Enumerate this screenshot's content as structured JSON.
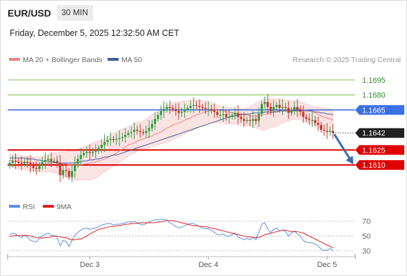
{
  "header": {
    "symbol": "EUR/USD",
    "timeframe": "30 MIN",
    "datetime": "Friday, December 5, 2025 12:32:50 AM CET"
  },
  "legend": {
    "ma20": "MA 20 + Bollinger Bands",
    "ma50": "MA 50",
    "credit": "Research © 2025 Trading Central"
  },
  "rsi_legend": {
    "rsi": "RSI",
    "ma9": "9MA"
  },
  "colors": {
    "up_candle": "#2e9e44",
    "down_candle": "#c0392b",
    "resistance": "#7cc243",
    "pivot": "#3a6fe6",
    "support": "#e00000",
    "bollinger": "#fbdada",
    "ma20": "#f08080",
    "ma50": "#3a5aa0",
    "rsi": "#5b8ee8",
    "rsi_ma": "#dd1c1c",
    "arrow": "#3a6ab0",
    "current": "#222222"
  },
  "chart_data": [
    {
      "type": "candlestick",
      "title": "",
      "x_labels": [
        "Dec 3",
        "Dec 4",
        "Dec 5"
      ],
      "ylim": [
        1.1588,
        1.1708
      ],
      "levels": [
        {
          "value": 1.1695,
          "label": "1.1695",
          "kind": "resistance"
        },
        {
          "value": 1.168,
          "label": "1.1680",
          "kind": "resistance"
        },
        {
          "value": 1.1665,
          "label": "1.1665",
          "kind": "pivot"
        },
        {
          "value": 1.1642,
          "label": "1.1642",
          "kind": "current"
        },
        {
          "value": 1.1625,
          "label": "1.1625",
          "kind": "support"
        },
        {
          "value": 1.161,
          "label": "1.1610",
          "kind": "support"
        }
      ],
      "closes": [
        1.1612,
        1.1614,
        1.1613,
        1.1612,
        1.1611,
        1.1613,
        1.1612,
        1.1609,
        1.1607,
        1.1606,
        1.161,
        1.1613,
        1.1615,
        1.1616,
        1.1614,
        1.1614,
        1.1612,
        1.16,
        1.1605,
        1.1604,
        1.1598,
        1.1604,
        1.1611,
        1.1616,
        1.162,
        1.1622,
        1.1623,
        1.1622,
        1.1623,
        1.1624,
        1.1627,
        1.163,
        1.1633,
        1.1635,
        1.1636,
        1.1635,
        1.1636,
        1.1637,
        1.1638,
        1.164,
        1.1642,
        1.1643,
        1.1645,
        1.1644,
        1.1643,
        1.1642,
        1.1644,
        1.1647,
        1.1651,
        1.1656,
        1.166,
        1.1664,
        1.1666,
        1.1668,
        1.1667,
        1.1666,
        1.1664,
        1.1662,
        1.1663,
        1.1665,
        1.1667,
        1.1669,
        1.167,
        1.1669,
        1.1668,
        1.1667,
        1.1666,
        1.1666,
        1.1665,
        1.1663,
        1.166,
        1.166,
        1.1661,
        1.1658,
        1.1658,
        1.166,
        1.1662,
        1.1658,
        1.1656,
        1.1654,
        1.1655,
        1.1654,
        1.1656,
        1.1654,
        1.1661,
        1.1671,
        1.1673,
        1.1668,
        1.1664,
        1.1668,
        1.167,
        1.1667,
        1.1668,
        1.1667,
        1.1662,
        1.1665,
        1.1668,
        1.1665,
        1.1663,
        1.1658,
        1.1656,
        1.1655,
        1.1655,
        1.1652,
        1.165,
        1.1645,
        1.1644,
        1.1643,
        1.1644,
        1.1642
      ],
      "ma20": [
        1.1615,
        1.1614,
        1.1614,
        1.1613,
        1.1613,
        1.1613,
        1.1613,
        1.1612,
        1.1612,
        1.1611,
        1.1611,
        1.1611,
        1.1611,
        1.1612,
        1.1612,
        1.1612,
        1.1612,
        1.1612,
        1.1611,
        1.1611,
        1.161,
        1.161,
        1.161,
        1.161,
        1.161,
        1.1611,
        1.1611,
        1.1612,
        1.1612,
        1.1613,
        1.1614,
        1.1615,
        1.1616,
        1.1617,
        1.1619,
        1.162,
        1.1622,
        1.1624,
        1.1626,
        1.1628,
        1.163,
        1.1631,
        1.1632,
        1.1634,
        1.1635,
        1.1636,
        1.1637,
        1.1638,
        1.1639,
        1.1641,
        1.1642,
        1.1643,
        1.1645,
        1.1647,
        1.1648,
        1.165,
        1.1651,
        1.1652,
        1.1653,
        1.1655,
        1.1656,
        1.1657,
        1.1659,
        1.166,
        1.1661,
        1.1662,
        1.1663,
        1.1664,
        1.1664,
        1.1665,
        1.1665,
        1.1664,
        1.1664,
        1.1663,
        1.1663,
        1.1662,
        1.1662,
        1.1661,
        1.1661,
        1.166,
        1.166,
        1.1659,
        1.1659,
        1.1659,
        1.1659,
        1.166,
        1.1661,
        1.1661,
        1.1662,
        1.1663,
        1.1664,
        1.1664,
        1.1664,
        1.1665,
        1.1665,
        1.1665,
        1.1666,
        1.1666,
        1.1666,
        1.1665,
        1.1665,
        1.1664,
        1.1663,
        1.1662,
        1.1661,
        1.1659,
        1.1658,
        1.1657,
        1.1656,
        1.1655
      ],
      "band_upper": [
        1.1621,
        1.162,
        1.162,
        1.162,
        1.1619,
        1.1619,
        1.1619,
        1.1618,
        1.1618,
        1.1618,
        1.1618,
        1.1618,
        1.1619,
        1.162,
        1.1621,
        1.1622,
        1.1622,
        1.1623,
        1.1623,
        1.1623,
        1.1624,
        1.1624,
        1.1625,
        1.1626,
        1.1627,
        1.1628,
        1.1629,
        1.163,
        1.1632,
        1.1633,
        1.1634,
        1.1635,
        1.1637,
        1.1638,
        1.164,
        1.1642,
        1.1643,
        1.1644,
        1.1646,
        1.1647,
        1.1648,
        1.165,
        1.1651,
        1.1652,
        1.1653,
        1.1654,
        1.1656,
        1.1658,
        1.166,
        1.1662,
        1.1664,
        1.1666,
        1.1668,
        1.167,
        1.1671,
        1.1672,
        1.1673,
        1.1673,
        1.1674,
        1.1674,
        1.1674,
        1.1675,
        1.1675,
        1.1675,
        1.1675,
        1.1674,
        1.1674,
        1.1673,
        1.1672,
        1.1671,
        1.167,
        1.1669,
        1.1669,
        1.1668,
        1.1667,
        1.1667,
        1.1666,
        1.1666,
        1.1666,
        1.1666,
        1.1667,
        1.1668,
        1.167,
        1.1672,
        1.1673,
        1.1675,
        1.1676,
        1.1676,
        1.1676,
        1.1676,
        1.1676,
        1.1676,
        1.1675,
        1.1675,
        1.1675,
        1.1674,
        1.1674,
        1.1674,
        1.1673,
        1.1672,
        1.1671,
        1.167,
        1.1669,
        1.1668,
        1.1668,
        1.1667,
        1.1667,
        1.1666,
        1.1666,
        1.1665
      ],
      "band_lower": [
        1.1609,
        1.1608,
        1.1607,
        1.1606,
        1.1606,
        1.1605,
        1.1605,
        1.1604,
        1.1604,
        1.1604,
        1.1603,
        1.1603,
        1.1603,
        1.1603,
        1.1603,
        1.1602,
        1.1601,
        1.16,
        1.1599,
        1.1598,
        1.1597,
        1.1596,
        1.1595,
        1.1595,
        1.1595,
        1.1595,
        1.1595,
        1.1595,
        1.1596,
        1.1597,
        1.1599,
        1.1601,
        1.1603,
        1.1605,
        1.1607,
        1.1609,
        1.1611,
        1.1613,
        1.1615,
        1.1617,
        1.1619,
        1.1621,
        1.1622,
        1.1624,
        1.1625,
        1.1626,
        1.1626,
        1.1627,
        1.1628,
        1.1629,
        1.163,
        1.1631,
        1.1632,
        1.1633,
        1.1634,
        1.1636,
        1.1637,
        1.1638,
        1.164,
        1.1641,
        1.1643,
        1.1644,
        1.1645,
        1.1647,
        1.1648,
        1.1649,
        1.165,
        1.1651,
        1.1652,
        1.1652,
        1.1652,
        1.1652,
        1.1652,
        1.1651,
        1.1651,
        1.1651,
        1.1651,
        1.165,
        1.165,
        1.165,
        1.1649,
        1.1649,
        1.1648,
        1.1647,
        1.1646,
        1.1645,
        1.1645,
        1.1646,
        1.1647,
        1.1648,
        1.1649,
        1.1651,
        1.1652,
        1.1653,
        1.1654,
        1.1655,
        1.1656,
        1.1656,
        1.1655,
        1.1654,
        1.1653,
        1.1652,
        1.1651,
        1.165,
        1.1648,
        1.1646,
        1.1645,
        1.1644,
        1.1644,
        1.1643
      ],
      "ma50": [
        1.1617,
        1.1617,
        1.1617,
        1.1617,
        1.1617,
        1.1617,
        1.1616,
        1.1616,
        1.1616,
        1.1615,
        1.1615,
        1.1614,
        1.1614,
        1.1614,
        1.1613,
        1.1613,
        1.1612,
        1.1612,
        1.1612,
        1.1612,
        1.1612,
        1.1612,
        1.1612,
        1.1613,
        1.1613,
        1.1614,
        1.1614,
        1.1615,
        1.1615,
        1.1616,
        1.1616,
        1.1617,
        1.1618,
        1.1618,
        1.1619,
        1.162,
        1.162,
        1.1621,
        1.1622,
        1.1623,
        1.1624,
        1.1625,
        1.1626,
        1.1627,
        1.1628,
        1.1629,
        1.163,
        1.1631,
        1.1632,
        1.1633,
        1.1634,
        1.1635,
        1.1636,
        1.1637,
        1.1638,
        1.1639,
        1.164,
        1.1641,
        1.1642,
        1.1643,
        1.1644,
        1.1645,
        1.1646,
        1.1647,
        1.1648,
        1.1649,
        1.165,
        1.1651,
        1.1652,
        1.1653,
        1.1654,
        1.1655,
        1.1656,
        1.1657,
        1.1658,
        1.1659,
        1.1659,
        1.166,
        1.166,
        1.1661,
        1.1661,
        1.1661,
        1.1662,
        1.1662,
        1.1662,
        1.1662,
        1.1663,
        1.1663,
        1.1663,
        1.1663,
        1.1663,
        1.1664,
        1.1664,
        1.1664,
        1.1664,
        1.1664,
        1.1664,
        1.1664,
        1.1664,
        1.1664,
        1.1664,
        1.1664,
        1.1664,
        1.1663,
        1.1663,
        1.1662,
        1.1662,
        1.1661,
        1.1661,
        1.166
      ],
      "forecast": {
        "from": 1.1642,
        "to": 1.161
      }
    },
    {
      "type": "line",
      "title": "",
      "ylim": [
        25,
        80
      ],
      "y_ticks": [
        70,
        50,
        30
      ],
      "series": [
        {
          "name": "RSI",
          "values": [
            52,
            54,
            53,
            50,
            48,
            51,
            49,
            44,
            43,
            42,
            47,
            50,
            53,
            54,
            51,
            51,
            48,
            37,
            44,
            43,
            36,
            44,
            51,
            55,
            58,
            60,
            61,
            59,
            60,
            61,
            63,
            65,
            66,
            67,
            67,
            65,
            66,
            66,
            67,
            68,
            69,
            69,
            70,
            68,
            66,
            65,
            67,
            69,
            71,
            72,
            72,
            73,
            72,
            72,
            68,
            66,
            63,
            61,
            62,
            64,
            66,
            67,
            67,
            65,
            63,
            61,
            60,
            60,
            58,
            55,
            52,
            52,
            53,
            50,
            50,
            52,
            54,
            49,
            47,
            45,
            47,
            45,
            48,
            45,
            55,
            66,
            68,
            60,
            55,
            59,
            61,
            57,
            58,
            56,
            50,
            54,
            57,
            53,
            50,
            44,
            42,
            41,
            41,
            39,
            37,
            32,
            31,
            31,
            33,
            31
          ]
        },
        {
          "name": "9MA",
          "values": [
            50,
            50,
            51,
            51,
            51,
            51,
            51,
            50,
            49,
            48,
            48,
            47,
            48,
            48,
            49,
            50,
            50,
            49,
            48,
            48,
            46,
            45,
            45,
            46,
            46,
            48,
            50,
            53,
            55,
            57,
            59,
            60,
            61,
            62,
            63,
            63,
            64,
            64,
            65,
            66,
            66,
            67,
            67,
            67,
            68,
            68,
            68,
            68,
            68,
            68,
            69,
            69,
            70,
            71,
            71,
            71,
            70,
            69,
            68,
            67,
            66,
            65,
            64,
            64,
            63,
            63,
            63,
            62,
            61,
            60,
            59,
            58,
            57,
            56,
            55,
            54,
            53,
            52,
            51,
            50,
            49,
            49,
            48,
            48,
            48,
            50,
            52,
            53,
            54,
            55,
            56,
            57,
            58,
            58,
            57,
            56,
            56,
            56,
            55,
            54,
            52,
            50,
            48,
            46,
            44,
            42,
            40,
            38,
            36,
            34
          ]
        }
      ]
    }
  ]
}
